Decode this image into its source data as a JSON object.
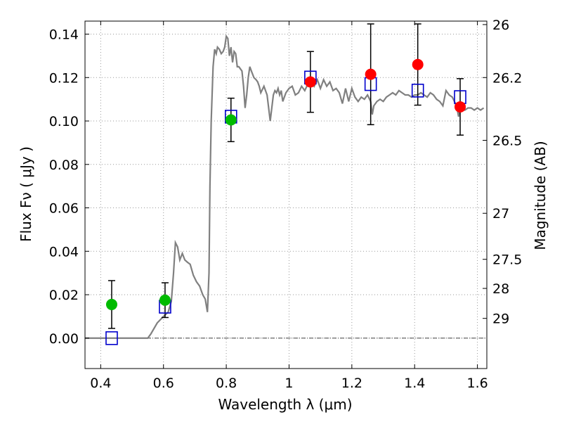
{
  "chart_data": {
    "type": "scatter",
    "xlabel": "Wavelength  λ (μm)",
    "ylabel": "Flux  Fν  ( μJy )",
    "y2label": "Magnitude (AB)",
    "xlim": [
      0.35,
      1.63
    ],
    "ylim": [
      -0.014,
      0.146
    ],
    "grid": true,
    "x_ticks": [
      {
        "value": 0.4,
        "label": "0.4"
      },
      {
        "value": 0.6,
        "label": "0.6"
      },
      {
        "value": 0.8,
        "label": "0.8"
      },
      {
        "value": 1.0,
        "label": "1"
      },
      {
        "value": 1.2,
        "label": "1.2"
      },
      {
        "value": 1.4,
        "label": "1.4"
      },
      {
        "value": 1.6,
        "label": "1.6"
      }
    ],
    "y_ticks": [
      {
        "value": 0.0,
        "label": "0.00"
      },
      {
        "value": 0.02,
        "label": "0.02"
      },
      {
        "value": 0.04,
        "label": "0.04"
      },
      {
        "value": 0.06,
        "label": "0.06"
      },
      {
        "value": 0.08,
        "label": "0.08"
      },
      {
        "value": 0.1,
        "label": "0.10"
      },
      {
        "value": 0.12,
        "label": "0.12"
      },
      {
        "value": 0.14,
        "label": "0.14"
      }
    ],
    "y2_ticks": [
      {
        "flux": 0.1444,
        "label": "26"
      },
      {
        "flux": 0.12,
        "label": "26.2"
      },
      {
        "flux": 0.0911,
        "label": "26.5"
      },
      {
        "flux": 0.0575,
        "label": "27"
      },
      {
        "flux": 0.0363,
        "label": "27.5"
      },
      {
        "flux": 0.0229,
        "label": "28"
      },
      {
        "flux": 0.0091,
        "label": "29"
      }
    ],
    "model_sed": {
      "color": "#808080",
      "x": [
        0.35,
        0.55,
        0.56,
        0.58,
        0.6,
        0.615,
        0.625,
        0.632,
        0.638,
        0.645,
        0.652,
        0.66,
        0.668,
        0.676,
        0.685,
        0.695,
        0.705,
        0.715,
        0.725,
        0.733,
        0.74,
        0.745,
        0.748,
        0.752,
        0.758,
        0.763,
        0.768,
        0.772,
        0.778,
        0.784,
        0.79,
        0.795,
        0.8,
        0.805,
        0.81,
        0.815,
        0.82,
        0.825,
        0.83,
        0.835,
        0.84,
        0.845,
        0.85,
        0.855,
        0.86,
        0.865,
        0.87,
        0.875,
        0.88,
        0.888,
        0.895,
        0.9,
        0.905,
        0.91,
        0.92,
        0.93,
        0.94,
        0.95,
        0.955,
        0.96,
        0.965,
        0.97,
        0.975,
        0.98,
        0.99,
        1.0,
        1.01,
        1.02,
        1.03,
        1.04,
        1.05,
        1.06,
        1.07,
        1.08,
        1.09,
        1.1,
        1.11,
        1.12,
        1.13,
        1.14,
        1.15,
        1.16,
        1.17,
        1.18,
        1.19,
        1.2,
        1.21,
        1.22,
        1.23,
        1.24,
        1.25,
        1.26,
        1.265,
        1.27,
        1.28,
        1.29,
        1.3,
        1.31,
        1.32,
        1.33,
        1.34,
        1.35,
        1.36,
        1.37,
        1.38,
        1.39,
        1.4,
        1.41,
        1.42,
        1.43,
        1.44,
        1.45,
        1.46,
        1.47,
        1.48,
        1.49,
        1.5,
        1.51,
        1.52,
        1.53,
        1.535,
        1.54,
        1.545,
        1.55,
        1.56,
        1.57,
        1.58,
        1.59,
        1.6,
        1.61,
        1.62
      ],
      "y": [
        0.0,
        0.0,
        0.002,
        0.007,
        0.01,
        0.012,
        0.017,
        0.03,
        0.044,
        0.042,
        0.036,
        0.039,
        0.036,
        0.035,
        0.034,
        0.029,
        0.026,
        0.024,
        0.02,
        0.018,
        0.012,
        0.03,
        0.07,
        0.1,
        0.125,
        0.133,
        0.131,
        0.134,
        0.133,
        0.131,
        0.132,
        0.134,
        0.139,
        0.138,
        0.13,
        0.134,
        0.127,
        0.132,
        0.131,
        0.125,
        0.125,
        0.124,
        0.123,
        0.116,
        0.106,
        0.112,
        0.12,
        0.125,
        0.123,
        0.12,
        0.119,
        0.118,
        0.116,
        0.113,
        0.116,
        0.112,
        0.1,
        0.112,
        0.114,
        0.113,
        0.115,
        0.112,
        0.114,
        0.109,
        0.113,
        0.115,
        0.116,
        0.112,
        0.113,
        0.116,
        0.114,
        0.117,
        0.119,
        0.116,
        0.119,
        0.115,
        0.119,
        0.116,
        0.118,
        0.114,
        0.115,
        0.113,
        0.108,
        0.115,
        0.109,
        0.115,
        0.111,
        0.109,
        0.111,
        0.11,
        0.112,
        0.109,
        0.103,
        0.107,
        0.109,
        0.11,
        0.109,
        0.111,
        0.112,
        0.113,
        0.112,
        0.114,
        0.113,
        0.112,
        0.112,
        0.111,
        0.112,
        0.112,
        0.113,
        0.112,
        0.111,
        0.113,
        0.112,
        0.11,
        0.109,
        0.107,
        0.114,
        0.112,
        0.111,
        0.108,
        0.106,
        0.102,
        0.107,
        0.106,
        0.105,
        0.106,
        0.106,
        0.105,
        0.106,
        0.105,
        0.106
      ]
    },
    "model_points": {
      "color": "#0000cc",
      "marker": "open-square",
      "x": [
        0.435,
        0.605,
        0.815,
        1.068,
        1.26,
        1.41,
        1.545
      ],
      "y": [
        0.0,
        0.0145,
        0.102,
        0.12,
        0.117,
        0.114,
        0.111
      ]
    },
    "observed": [
      {
        "x": 0.435,
        "y": 0.0155,
        "err": 0.011,
        "color": "#00bb00"
      },
      {
        "x": 0.605,
        "y": 0.0175,
        "err": 0.008,
        "color": "#00bb00"
      },
      {
        "x": 0.815,
        "y": 0.1005,
        "err": 0.01,
        "color": "#00bb00"
      },
      {
        "x": 1.068,
        "y": 0.118,
        "err": 0.014,
        "color": "#ff0000"
      },
      {
        "x": 1.26,
        "y": 0.1215,
        "err": 0.0232,
        "color": "#ff0000"
      },
      {
        "x": 1.41,
        "y": 0.126,
        "err": 0.0187,
        "color": "#ff0000"
      },
      {
        "x": 1.545,
        "y": 0.1065,
        "err": 0.013,
        "color": "#ff0000"
      }
    ]
  }
}
